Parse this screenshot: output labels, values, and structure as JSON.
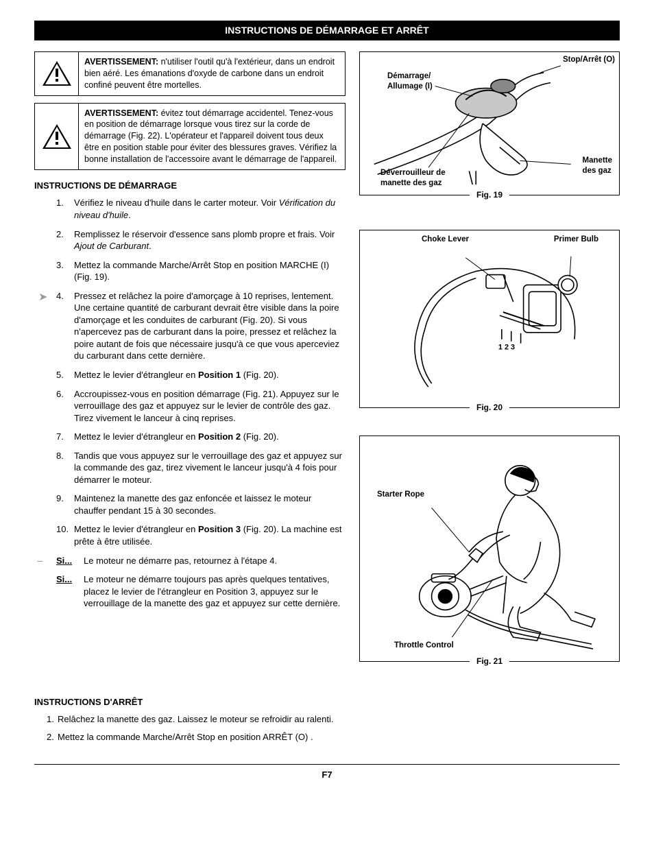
{
  "page_title": "INSTRUCTIONS DE DÉMARRAGE ET ARRÊT",
  "warnings": [
    {
      "lead": "AVERTISSEMENT:",
      "text": " n'utiliser l'outil qu'à l'extérieur, dans un endroit bien aéré. Les émanations d'oxyde de carbone dans un endroit confiné peuvent être mortelles."
    },
    {
      "lead": "AVERTISSEMENT:",
      "text": " évitez tout démarrage accidentel. Tenez-vous en position de démarrage lorsque vous tirez sur la corde de démarrage (Fig. 22). L'opérateur et l'appareil doivent tous deux être en position stable pour éviter des blessures graves. Vérifiez la bonne installation de l'accessoire avant le démarrage de l'appareil."
    }
  ],
  "start_heading": "INSTRUCTIONS DE DÉMARRAGE",
  "steps": [
    {
      "n": "1.",
      "pre": "Vérifiez le niveau d'huile dans le carter moteur. Voir ",
      "italic": "Vérification du niveau d'huile",
      "post": "."
    },
    {
      "n": "2.",
      "pre": "Remplissez le réservoir d'essence sans plomb propre et frais. Voir ",
      "italic": "Ajout de Carburant",
      "post": "."
    },
    {
      "n": "3.",
      "text": "Mettez la commande Marche/Arrêt Stop en position MARCHE (I) (Fig. 19)."
    },
    {
      "n": "4.",
      "text": "Pressez et relâchez la poire d'amorçage à 10 reprises, lentement. Une certaine quantité de carburant devrait être visible dans la poire d'amorçage et les conduites de carburant (Fig. 20). Si vous n'apercevez pas de carburant dans la poire, pressez et relâchez la poire autant de fois que nécessaire jusqu'à ce que vous aperceviez du carburant dans cette dernière.",
      "arrow": true
    },
    {
      "n": "5.",
      "html": "Mettez le levier d'étrangleur en <b>Position 1</b> (Fig. 20)."
    },
    {
      "n": "6.",
      "text": "Accroupissez-vous en position démarrage (Fig. 21). Appuyez sur le verrouillage des gaz et appuyez sur le levier de contrôle des gaz. Tirez vivement le lanceur à cinq reprises."
    },
    {
      "n": "7.",
      "html": "Mettez le levier d'étrangleur en <b>Position 2</b> (Fig. 20)."
    },
    {
      "n": "8.",
      "text": "Tandis que vous appuyez sur le verrouillage des gaz et appuyez sur la commande des gaz, tirez vivement le lanceur jusqu'à 4 fois pour démarrer le moteur."
    },
    {
      "n": "9.",
      "text": "Maintenez la manette des gaz enfoncée et laissez le moteur chauffer pendant 15 à 30 secondes."
    },
    {
      "n": "10.",
      "html": "Mettez le levier d'étrangleur en <b>Position 3</b> (Fig. 20). La machine est prête à être utilisée."
    }
  ],
  "si": [
    {
      "label": "Si...",
      "text": "Le moteur ne démarre pas, retournez à l'étape 4.",
      "arrow": true
    },
    {
      "label": "Si...",
      "text": "Le moteur ne démarre toujours pas après quelques tentatives, placez le levier de l'étrangleur en Position 3, appuyez sur le verrouillage de la manette des gaz et appuyez sur cette dernière."
    }
  ],
  "stop_heading": "INSTRUCTIONS D'ARRÊT",
  "stop_steps": [
    {
      "n": "1.",
      "text": "Relâchez la manette des gaz. Laissez le moteur se refroidir au ralenti."
    },
    {
      "n": "2.",
      "text": "Mettez la commande Marche/Arrêt Stop en position ARRÊT (O) ."
    }
  ],
  "fig19": {
    "caption": "Fig. 19",
    "labels": {
      "stop": "Stop/Arrêt (O)",
      "demarrage": "Démarrage/\nAllumage (I)",
      "deverrou": "Déverrouilleur de\nmanette des gaz",
      "manette": "Manette\ndes gaz"
    }
  },
  "fig20": {
    "caption": "Fig. 20",
    "labels": {
      "choke": "Choke Lever",
      "primer": "Primer Bulb",
      "nums": "1 2 3"
    }
  },
  "fig21": {
    "caption": "Fig. 21",
    "labels": {
      "starter": "Starter Rope",
      "throttle": "Throttle Control"
    }
  },
  "page_number": "F7"
}
